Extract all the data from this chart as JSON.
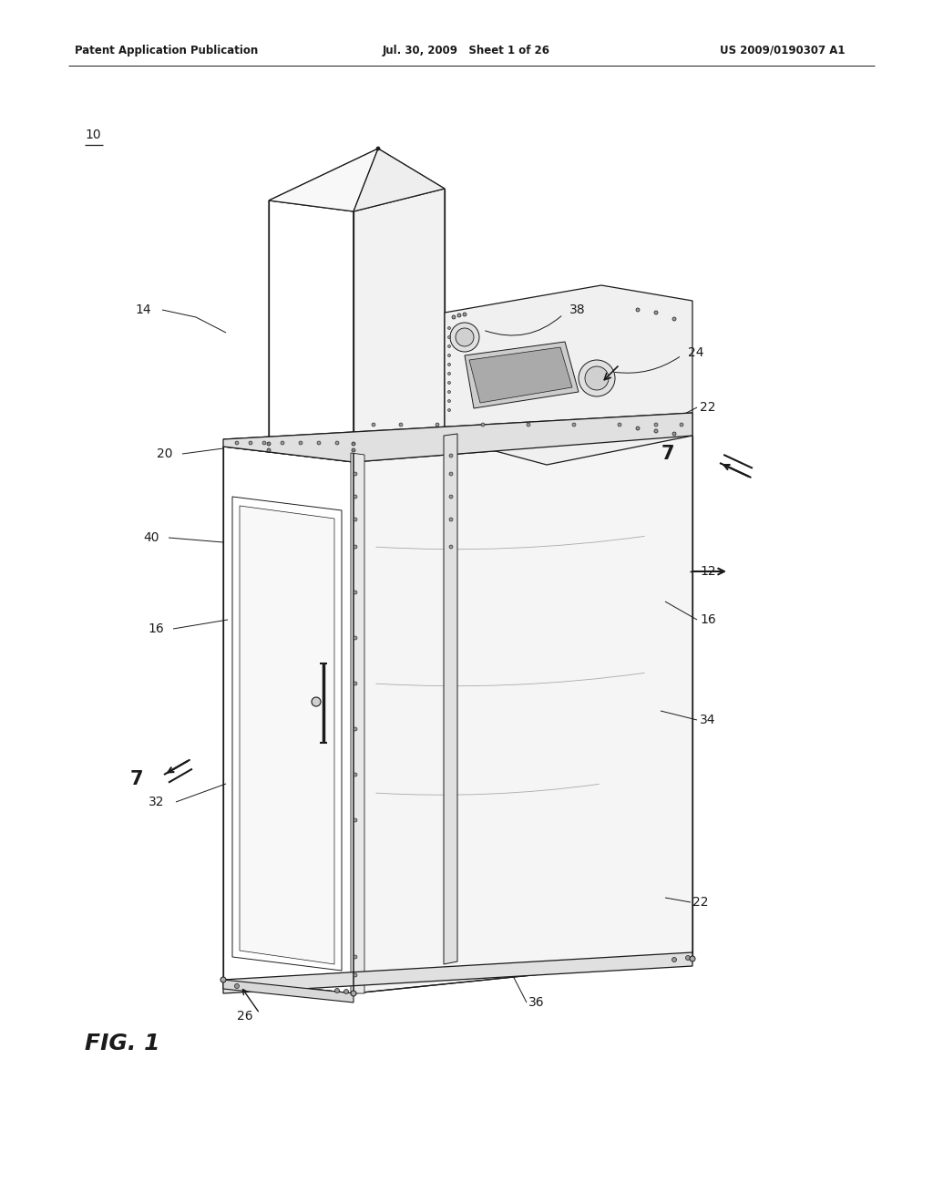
{
  "background_color": "#ffffff",
  "header_left": "Patent Application Publication",
  "header_mid": "Jul. 30, 2009   Sheet 1 of 26",
  "header_right": "US 2009/0190307 A1",
  "line_color": "#1a1a1a",
  "thin_lw": 0.8,
  "med_lw": 1.0,
  "thick_lw": 1.5,
  "face_white": "#ffffff",
  "face_light": "#f5f5f5",
  "face_med": "#e8e8e8",
  "face_dark": "#d5d5d5",
  "face_darker": "#c0c0c0"
}
